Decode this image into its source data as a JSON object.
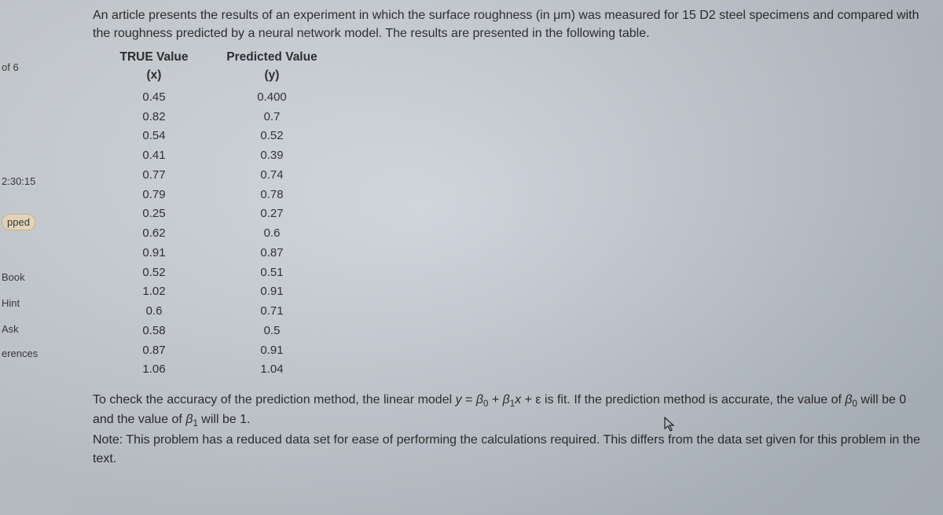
{
  "sidebar": {
    "counter": "of 6",
    "timer": "2:30:15",
    "pped": "pped",
    "book": "Book",
    "hint": "Hint",
    "ask": "Ask",
    "erences": "erences"
  },
  "intro": "An article presents the results of an experiment in which the surface roughness (in μm) was measured for 15 D2 steel specimens and compared with the roughness predicted by a neural network model. The results are presented in the following table.",
  "table": {
    "header_x": "TRUE Value (x)",
    "header_y": "Predicted Value (y)",
    "rows": [
      {
        "x": "0.45",
        "y": "0.400"
      },
      {
        "x": "0.82",
        "y": "0.7"
      },
      {
        "x": "0.54",
        "y": "0.52"
      },
      {
        "x": "0.41",
        "y": "0.39"
      },
      {
        "x": "0.77",
        "y": "0.74"
      },
      {
        "x": "0.79",
        "y": "0.78"
      },
      {
        "x": "0.25",
        "y": "0.27"
      },
      {
        "x": "0.62",
        "y": "0.6"
      },
      {
        "x": "0.91",
        "y": "0.87"
      },
      {
        "x": "0.52",
        "y": "0.51"
      },
      {
        "x": "1.02",
        "y": "0.91"
      },
      {
        "x": "0.6",
        "y": "0.71"
      },
      {
        "x": "0.58",
        "y": "0.5"
      },
      {
        "x": "0.87",
        "y": "0.91"
      },
      {
        "x": "1.06",
        "y": "1.04"
      }
    ]
  },
  "closing": {
    "l1a": "To check the accuracy of the prediction method, the linear model ",
    "eq_y": "y",
    "eq_eq": " = ",
    "eq_b0": "β",
    "eq_s0": "0",
    "eq_plus": " + ",
    "eq_b1": "β",
    "eq_s1": "1",
    "eq_x": "x",
    "eq_pluse": " + ε",
    "l1b": " is fit. If the prediction method is accurate, the value of ",
    "l1c": " will be 0 and the value of ",
    "l1d": " will be 1.",
    "note": "Note: This problem has a reduced data set for ease of performing the calculations required. This differs from the data set given for this problem in the text."
  }
}
